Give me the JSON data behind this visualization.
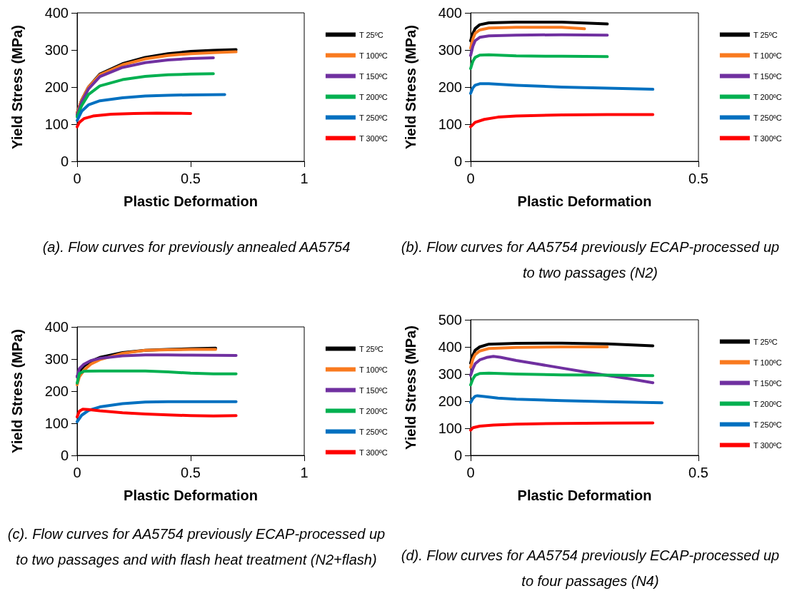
{
  "chart_data": [
    {
      "type": "line",
      "xlabel": "Plastic Deformation",
      "ylabel": "Yield Stress (MPa)",
      "xlim": [
        0,
        1
      ],
      "xticks": [
        0,
        0.5,
        1
      ],
      "ylim": [
        0,
        400
      ],
      "yticks": [
        0,
        100,
        200,
        300,
        400
      ],
      "grid": false,
      "legend": "right",
      "marker": "none",
      "line_style": "solid",
      "annotations": [
        "(a). Flow curves for previously annealed AA5754"
      ],
      "series": [
        {
          "name": "T 25ºC",
          "color": "#000000",
          "x": [
            0,
            0.02,
            0.05,
            0.1,
            0.2,
            0.3,
            0.4,
            0.5,
            0.6,
            0.7
          ],
          "values": [
            130,
            165,
            200,
            235,
            263,
            280,
            290,
            296,
            299,
            301
          ]
        },
        {
          "name": "T 100ºC",
          "color": "#f97a1f",
          "x": [
            0,
            0.02,
            0.05,
            0.1,
            0.2,
            0.3,
            0.4,
            0.5,
            0.6,
            0.7
          ],
          "values": [
            130,
            165,
            200,
            233,
            260,
            276,
            285,
            290,
            293,
            295
          ]
        },
        {
          "name": "T 150ºC",
          "color": "#7030a0",
          "x": [
            0,
            0.02,
            0.05,
            0.1,
            0.2,
            0.3,
            0.4,
            0.5,
            0.6
          ],
          "values": [
            125,
            160,
            195,
            228,
            253,
            266,
            273,
            277,
            279
          ]
        },
        {
          "name": "T 200ºC",
          "color": "#00b050",
          "x": [
            0,
            0.02,
            0.05,
            0.1,
            0.2,
            0.3,
            0.4,
            0.5,
            0.6
          ],
          "values": [
            120,
            150,
            180,
            203,
            220,
            229,
            233,
            235,
            236
          ]
        },
        {
          "name": "T 250ºC",
          "color": "#0070c0",
          "x": [
            0,
            0.02,
            0.05,
            0.1,
            0.2,
            0.3,
            0.4,
            0.5,
            0.65
          ],
          "values": [
            110,
            135,
            152,
            163,
            171,
            176,
            178,
            179,
            180
          ]
        },
        {
          "name": "T 300ºC",
          "color": "#ff0000",
          "x": [
            0,
            0.01,
            0.03,
            0.07,
            0.15,
            0.25,
            0.35,
            0.5
          ],
          "values": [
            93,
            105,
            115,
            122,
            127,
            129,
            130,
            129
          ]
        }
      ]
    },
    {
      "type": "line",
      "xlabel": "Plastic Deformation",
      "ylabel": "Yield Stress (MPa)",
      "xlim": [
        0,
        0.5
      ],
      "xticks": [
        0,
        0.5
      ],
      "ylim": [
        0,
        400
      ],
      "yticks": [
        0,
        100,
        200,
        300,
        400
      ],
      "grid": false,
      "legend": "right",
      "marker": "none",
      "line_style": "solid",
      "annotations": [
        "(b). Flow curves for AA5754 previously ECAP-processed up to two passages (N2)"
      ],
      "series": [
        {
          "name": "T 25ºC",
          "color": "#000000",
          "x": [
            0,
            0.005,
            0.01,
            0.02,
            0.04,
            0.1,
            0.2,
            0.3
          ],
          "values": [
            325,
            345,
            358,
            368,
            373,
            375,
            375,
            370
          ]
        },
        {
          "name": "T 100ºC",
          "color": "#f97a1f",
          "x": [
            0,
            0.005,
            0.01,
            0.02,
            0.04,
            0.1,
            0.2,
            0.25
          ],
          "values": [
            305,
            330,
            345,
            354,
            359,
            361,
            361,
            357
          ]
        },
        {
          "name": "T 150ºC",
          "color": "#7030a0",
          "x": [
            0,
            0.005,
            0.01,
            0.02,
            0.04,
            0.1,
            0.2,
            0.3
          ],
          "values": [
            285,
            310,
            325,
            334,
            338,
            340,
            341,
            340
          ]
        },
        {
          "name": "T 200ºC",
          "color": "#00b050",
          "x": [
            0,
            0.005,
            0.01,
            0.02,
            0.04,
            0.1,
            0.2,
            0.3
          ],
          "values": [
            250,
            270,
            280,
            286,
            287,
            284,
            283,
            282
          ]
        },
        {
          "name": "T 250ºC",
          "color": "#0070c0",
          "x": [
            0,
            0.005,
            0.01,
            0.02,
            0.04,
            0.1,
            0.2,
            0.3,
            0.4
          ],
          "values": [
            183,
            198,
            205,
            209,
            209,
            205,
            200,
            197,
            194
          ]
        },
        {
          "name": "T 300ºC",
          "color": "#ff0000",
          "x": [
            0,
            0.01,
            0.03,
            0.06,
            0.1,
            0.2,
            0.3,
            0.4
          ],
          "values": [
            93,
            105,
            113,
            119,
            122,
            125,
            126,
            126
          ]
        }
      ]
    },
    {
      "type": "line",
      "xlabel": "Plastic Deformation",
      "ylabel": "Yield Stress (MPa)",
      "xlim": [
        0,
        1
      ],
      "xticks": [
        0,
        0.5,
        1
      ],
      "ylim": [
        0,
        400
      ],
      "yticks": [
        0,
        100,
        200,
        300,
        400
      ],
      "grid": false,
      "legend": "right",
      "marker": "none",
      "line_style": "solid",
      "annotations": [
        "(c). Flow curves for AA5754 previously ECAP-processed up to two passages and with flash heat treatment (N2+flash)"
      ],
      "series": [
        {
          "name": "T 25ºC",
          "color": "#000000",
          "x": [
            0,
            0.01,
            0.03,
            0.06,
            0.1,
            0.2,
            0.3,
            0.4,
            0.5,
            0.61
          ],
          "values": [
            245,
            262,
            278,
            293,
            305,
            320,
            327,
            330,
            332,
            334
          ]
        },
        {
          "name": "T 100ºC",
          "color": "#f97a1f",
          "x": [
            0,
            0.01,
            0.03,
            0.06,
            0.1,
            0.2,
            0.3,
            0.4,
            0.5,
            0.61
          ],
          "values": [
            220,
            245,
            265,
            284,
            298,
            318,
            327,
            329,
            330,
            330
          ]
        },
        {
          "name": "T 150ºC",
          "color": "#7030a0",
          "x": [
            0,
            0.01,
            0.03,
            0.06,
            0.1,
            0.2,
            0.3,
            0.4,
            0.5,
            0.7
          ],
          "values": [
            245,
            270,
            284,
            295,
            302,
            310,
            313,
            313,
            312,
            311
          ]
        },
        {
          "name": "T 200ºC",
          "color": "#00b050",
          "x": [
            0,
            0.01,
            0.03,
            0.1,
            0.2,
            0.3,
            0.4,
            0.5,
            0.6,
            0.7
          ],
          "values": [
            225,
            255,
            262,
            263,
            263,
            263,
            260,
            256,
            254,
            254
          ]
        },
        {
          "name": "T 250ºC",
          "color": "#0070c0",
          "x": [
            0,
            0.02,
            0.05,
            0.1,
            0.2,
            0.3,
            0.4,
            0.5,
            0.7
          ],
          "values": [
            105,
            125,
            140,
            151,
            161,
            166,
            167,
            167,
            167
          ]
        },
        {
          "name": "T 300ºC",
          "color": "#ff0000",
          "x": [
            0,
            0.01,
            0.025,
            0.05,
            0.1,
            0.2,
            0.3,
            0.4,
            0.5,
            0.6,
            0.7
          ],
          "values": [
            120,
            138,
            144,
            143,
            139,
            133,
            129,
            126,
            124,
            123,
            124
          ]
        }
      ]
    },
    {
      "type": "line",
      "xlabel": "Plastic Deformation",
      "ylabel": "Yield Stress (MPa)",
      "xlim": [
        0,
        0.5
      ],
      "xticks": [
        0,
        0.5
      ],
      "ylim": [
        0,
        500
      ],
      "yticks": [
        0,
        100,
        200,
        300,
        400,
        500
      ],
      "grid": false,
      "legend": "right",
      "marker": "none",
      "line_style": "solid",
      "annotations": [
        "(d). Flow curves for AA5754 previously ECAP-processed up to four passages (N4)"
      ],
      "series": [
        {
          "name": "T 25ºC",
          "color": "#000000",
          "x": [
            0,
            0.005,
            0.01,
            0.02,
            0.04,
            0.1,
            0.2,
            0.3,
            0.4
          ],
          "values": [
            340,
            370,
            388,
            400,
            410,
            413,
            414,
            411,
            404
          ]
        },
        {
          "name": "T 100ºC",
          "color": "#f97a1f",
          "x": [
            0,
            0.005,
            0.01,
            0.02,
            0.04,
            0.1,
            0.2,
            0.3
          ],
          "values": [
            325,
            355,
            372,
            385,
            394,
            398,
            400,
            400
          ]
        },
        {
          "name": "T 150ºC",
          "color": "#7030a0",
          "x": [
            0,
            0.005,
            0.01,
            0.02,
            0.035,
            0.05,
            0.065,
            0.1,
            0.15,
            0.2,
            0.25,
            0.3,
            0.35,
            0.4
          ],
          "values": [
            295,
            320,
            338,
            352,
            361,
            365,
            362,
            350,
            336,
            322,
            308,
            295,
            282,
            268
          ]
        },
        {
          "name": "T 200ºC",
          "color": "#00b050",
          "x": [
            0,
            0.005,
            0.01,
            0.02,
            0.04,
            0.1,
            0.2,
            0.3,
            0.4
          ],
          "values": [
            260,
            282,
            295,
            302,
            303,
            300,
            297,
            296,
            294
          ]
        },
        {
          "name": "T 250ºC",
          "color": "#0070c0",
          "x": [
            0,
            0.005,
            0.01,
            0.015,
            0.03,
            0.06,
            0.1,
            0.2,
            0.3,
            0.42
          ],
          "values": [
            195,
            210,
            218,
            220,
            217,
            211,
            207,
            202,
            198,
            194
          ]
        },
        {
          "name": "T 300ºC",
          "color": "#ff0000",
          "x": [
            0,
            0.005,
            0.02,
            0.05,
            0.1,
            0.2,
            0.3,
            0.4
          ],
          "values": [
            93,
            102,
            108,
            112,
            115,
            118,
            119,
            120
          ]
        }
      ]
    }
  ]
}
